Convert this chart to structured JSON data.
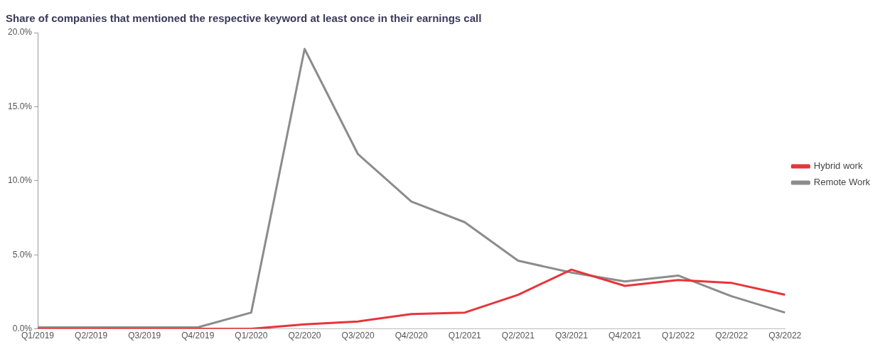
{
  "chart_data": {
    "type": "line",
    "title": "Share of companies that mentioned the respective keyword at least once in their earnings call",
    "categories": [
      "Q1/2019",
      "Q2/2019",
      "Q3/2019",
      "Q4/2019",
      "Q1/2020",
      "Q2/2020",
      "Q3/2020",
      "Q4/2020",
      "Q1/2021",
      "Q2/2021",
      "Q3/2021",
      "Q4/2021",
      "Q1/2022",
      "Q2/2022",
      "Q3/2022"
    ],
    "series": [
      {
        "name": "Hybrid work",
        "color": "#e8343a",
        "values": [
          0,
          0,
          0,
          0,
          0,
          0.3,
          0.5,
          1.0,
          1.1,
          2.3,
          4.0,
          2.9,
          3.3,
          3.1,
          2.3
        ]
      },
      {
        "name": "Remote Work",
        "color": "#8c8c8c",
        "values": [
          0.1,
          0.1,
          0.1,
          0.1,
          1.1,
          18.9,
          11.8,
          8.6,
          7.2,
          4.6,
          3.8,
          3.2,
          3.6,
          2.2,
          1.1
        ]
      }
    ],
    "ylim": [
      0,
      20
    ],
    "yticks": [
      {
        "value": 0,
        "label": "0.0%"
      },
      {
        "value": 5,
        "label": "5.0%"
      },
      {
        "value": 10,
        "label": "10.0%"
      },
      {
        "value": 15,
        "label": "15.0%"
      },
      {
        "value": 20,
        "label": "20.0%"
      }
    ],
    "grid": false,
    "legend": "right",
    "marker": "none",
    "line_style": "solid"
  }
}
